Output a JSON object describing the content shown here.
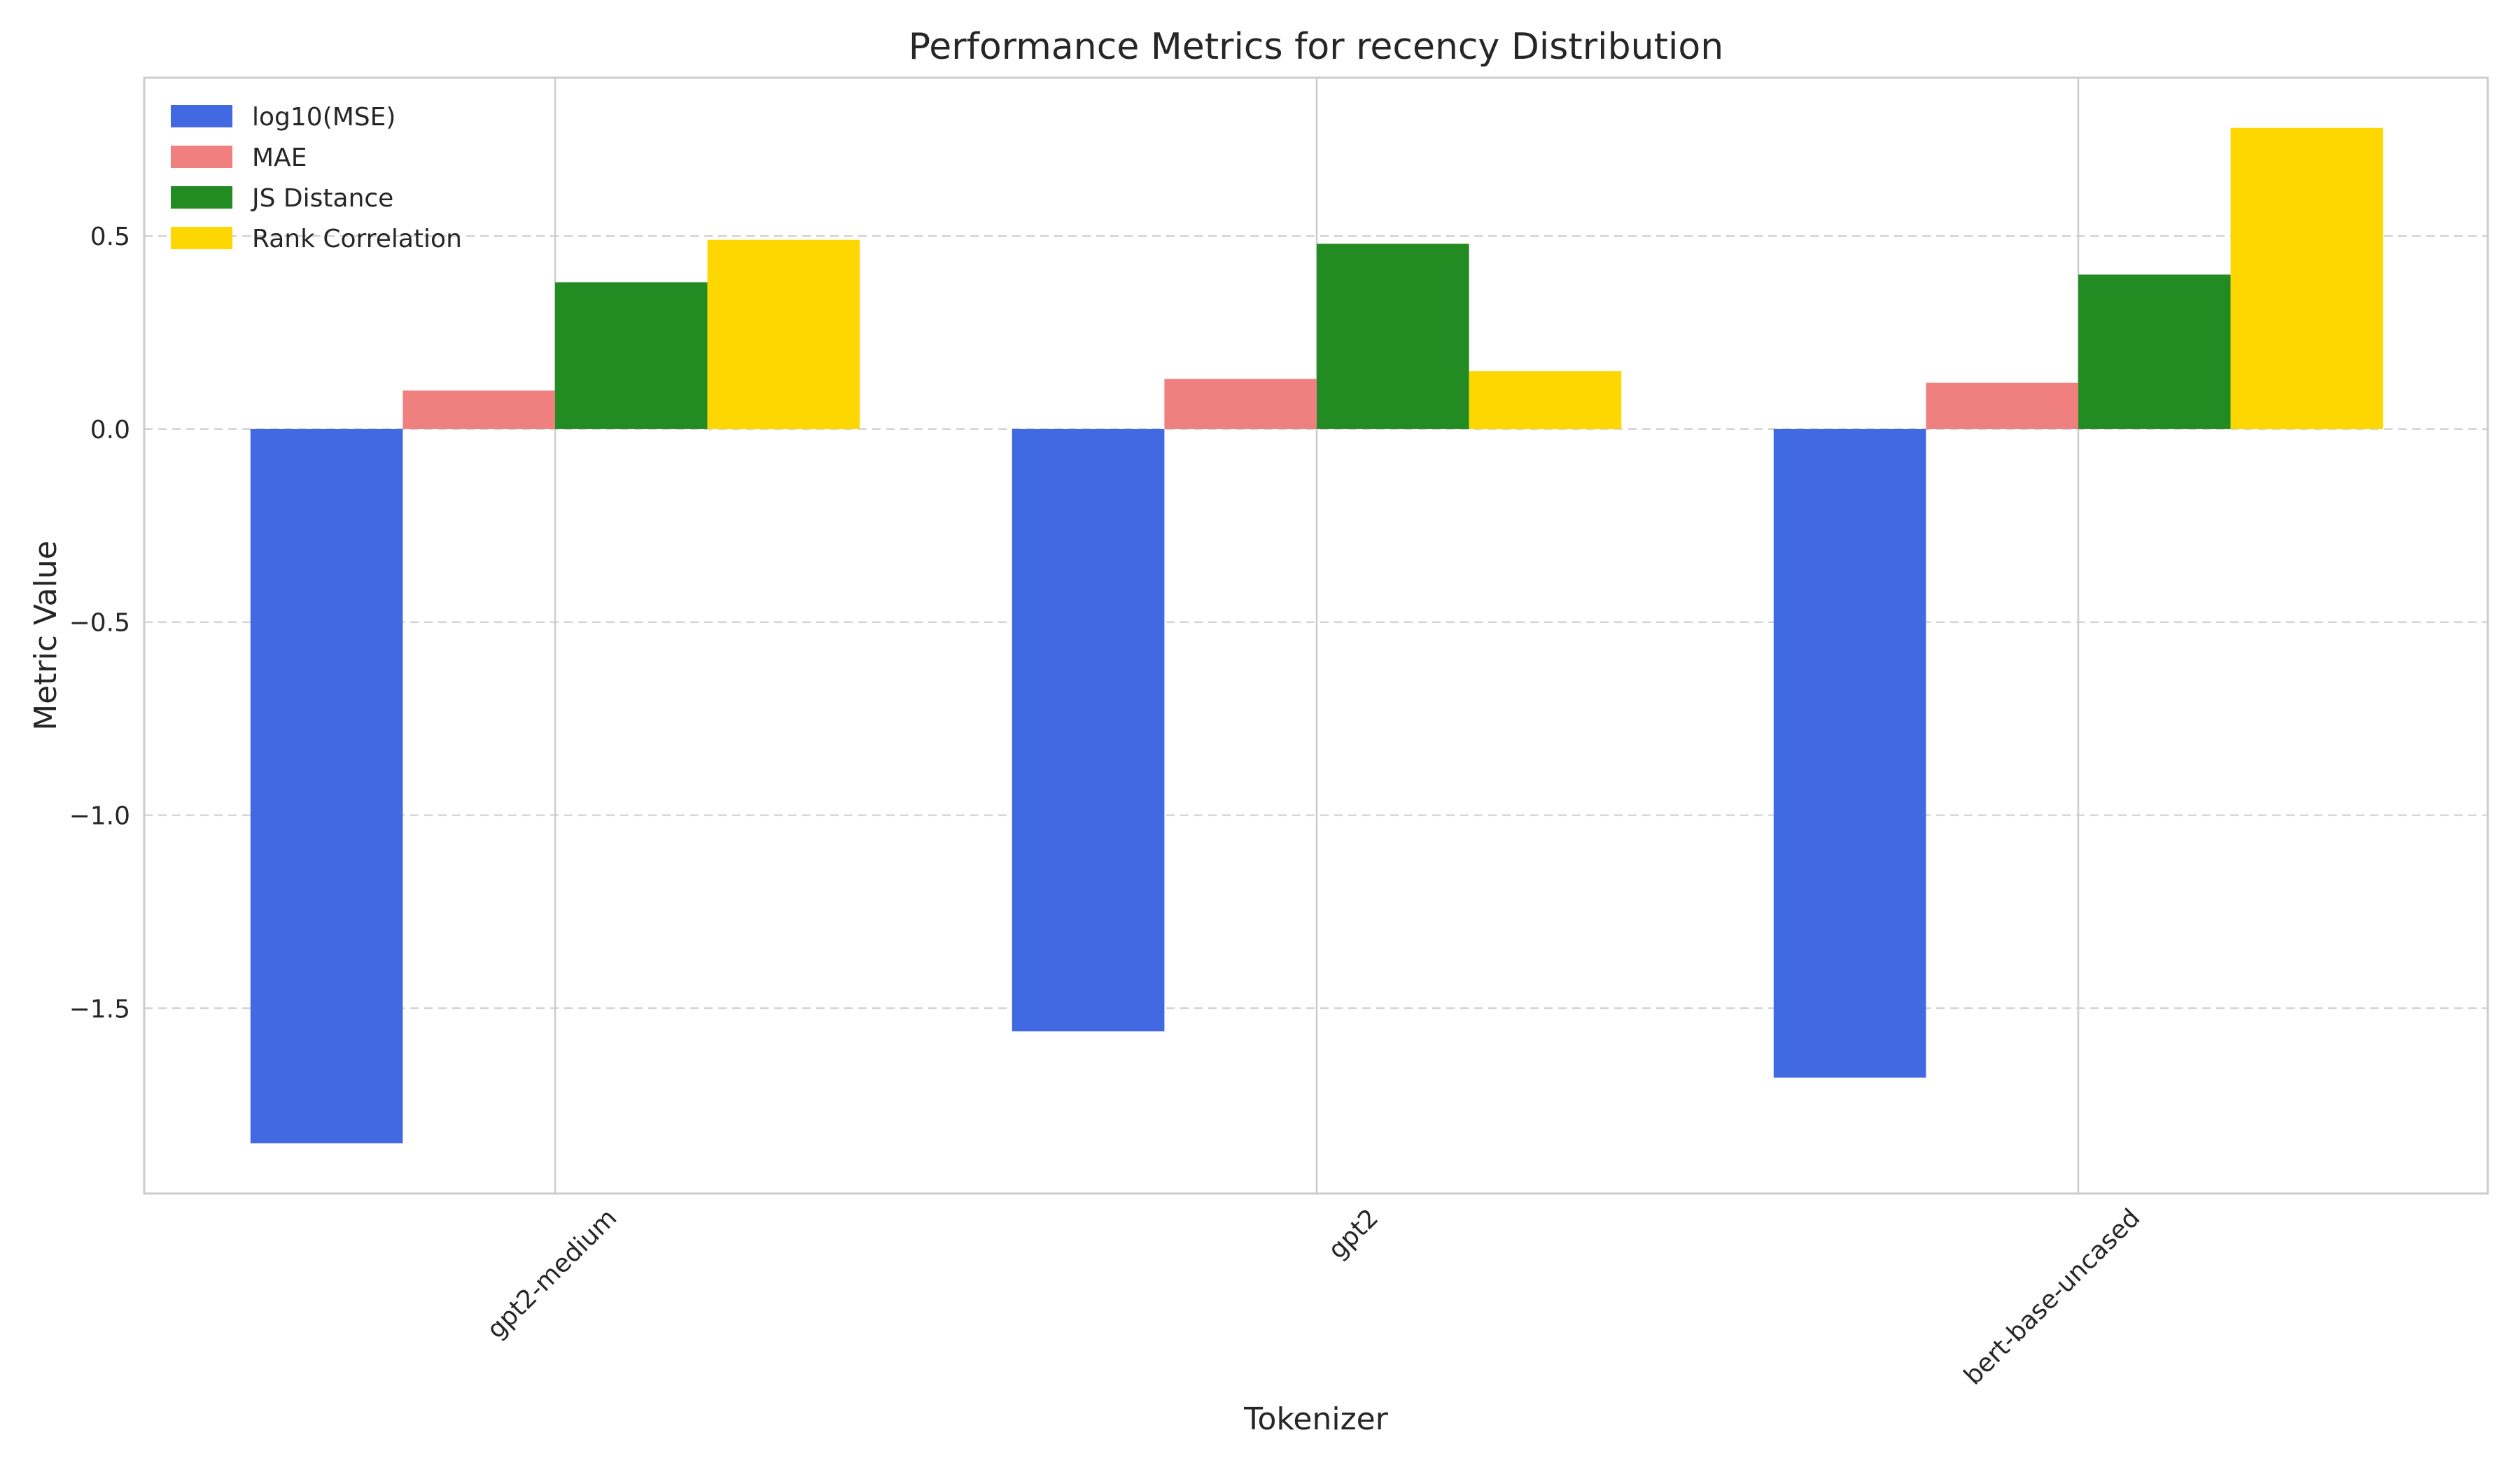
{
  "chart_data": {
    "type": "bar",
    "title": "Performance Metrics for recency Distribution",
    "xlabel": "Tokenizer",
    "ylabel": "Metric Value",
    "categories": [
      "gpt2-medium",
      "gpt2",
      "bert-base-uncased"
    ],
    "series": [
      {
        "name": "log10(MSE)",
        "color": "#4169e1",
        "values": [
          -1.85,
          -1.56,
          -1.68
        ]
      },
      {
        "name": "MAE",
        "color": "#f08080",
        "values": [
          0.1,
          0.13,
          0.12
        ]
      },
      {
        "name": "JS Distance",
        "color": "#228b22",
        "values": [
          0.38,
          0.48,
          0.4
        ]
      },
      {
        "name": "Rank Correlation",
        "color": "#ffd700",
        "values": [
          0.49,
          0.15,
          0.78
        ]
      }
    ],
    "ylim": [
      -1.98,
      0.91
    ],
    "yticks": [
      0.5,
      0.0,
      -0.5,
      -1.0,
      -1.5
    ],
    "ytick_labels": [
      "0.5",
      "0.0",
      "−0.5",
      "−1.0",
      "−1.5"
    ],
    "grid": true,
    "legend_position": "top-left"
  }
}
